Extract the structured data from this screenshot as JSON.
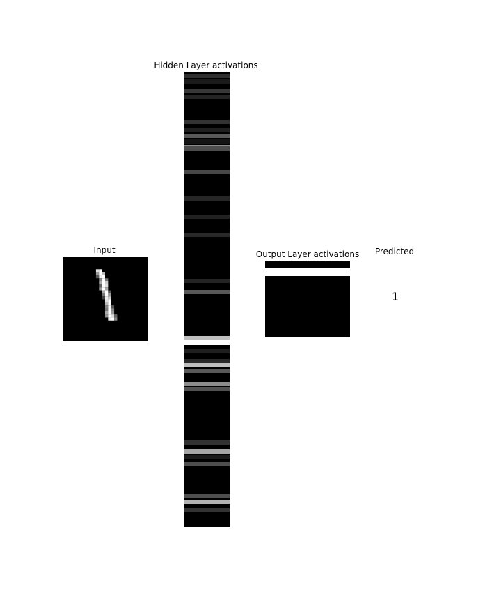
{
  "labels": {
    "input": "Input",
    "hidden": "Hidden Layer activations",
    "output": "Output Layer activations",
    "predicted": "Predicted"
  },
  "prediction": "1",
  "hidden_activations": {
    "bands": [
      {
        "level": 0.18,
        "w": 0.5
      },
      {
        "level": 0.1,
        "w": 0.5
      },
      {
        "level": 0.22,
        "w": 0.5
      },
      {
        "level": 0.14,
        "w": 0.5
      },
      {
        "level": 0.2,
        "w": 0.5
      },
      {
        "level": 0.12,
        "w": 0.5
      },
      {
        "level": 0.08,
        "w": 0.5
      },
      {
        "level": 0.18,
        "w": 0.5
      },
      {
        "level": 0.14,
        "w": 0.5
      },
      {
        "level": 0.4,
        "w": 0.5
      },
      {
        "level": 0.18,
        "w": 0.5
      },
      {
        "level": 0.55,
        "w": 0.5
      },
      {
        "level": 0.28,
        "w": 0.5
      },
      {
        "level": 0.15,
        "w": 0.5
      },
      {
        "level": 0.13,
        "w": 0.5
      },
      {
        "level": 0.16,
        "w": 0.5
      },
      {
        "level": 0.14,
        "w": 0.5
      },
      {
        "level": 0.35,
        "w": 0.5
      },
      {
        "level": 0.7,
        "w": 0.5
      },
      {
        "level": 0.12,
        "w": 0.5
      },
      {
        "level": 0.16,
        "w": 0.5
      },
      {
        "level": 0.75,
        "w": 0.5
      },
      {
        "level": 0.35,
        "w": 0.5
      },
      {
        "level": 0.55,
        "w": 0.5
      },
      {
        "level": 0.32,
        "w": 0.5
      },
      {
        "level": 0.2,
        "w": 0.5
      },
      {
        "level": 0.65,
        "w": 0.5
      },
      {
        "level": 0.1,
        "w": 0.5
      },
      {
        "level": 0.3,
        "w": 0.5
      },
      {
        "level": 0.3,
        "w": 0.5
      },
      {
        "level": 0.7,
        "w": 0.5
      },
      {
        "level": 0.2,
        "w": 0.5
      }
    ],
    "gap_after_index": 21
  },
  "output_activations": {
    "cells": [
      0.0,
      1.0,
      0.0
    ]
  }
}
